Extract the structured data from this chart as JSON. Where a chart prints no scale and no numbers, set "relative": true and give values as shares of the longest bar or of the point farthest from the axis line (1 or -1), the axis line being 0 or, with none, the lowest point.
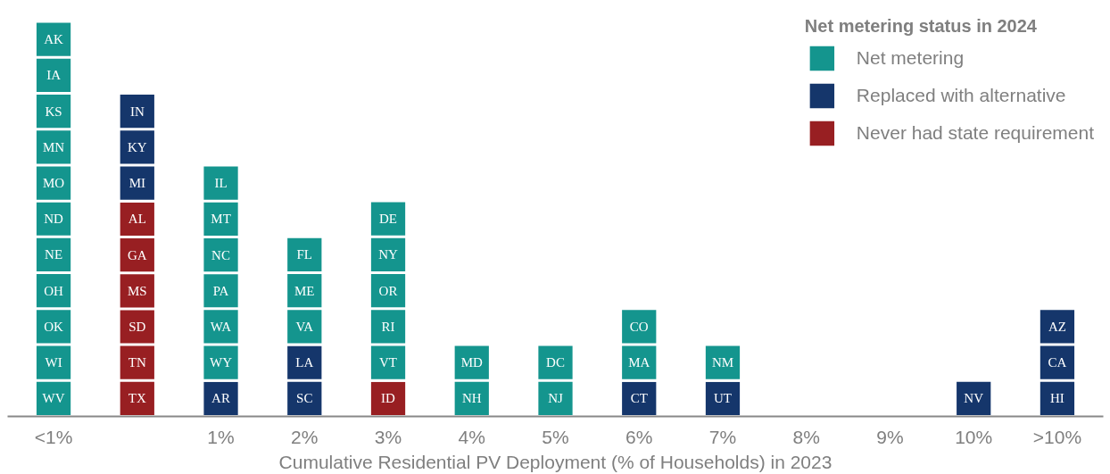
{
  "chart_data": {
    "type": "bar",
    "stacked": true,
    "relative": true,
    "xlabel": "Cumulative Residential PV Deployment (% of Households) in 2023",
    "legend_title": "Net metering status in 2024",
    "legend": "top right",
    "categories": [
      "<1%",
      null,
      "1%",
      "2%",
      "3%",
      "4%",
      "5%",
      "6%",
      "7%",
      "8%",
      "9%",
      "10%",
      ">10%"
    ],
    "series": [
      {
        "name": "Never had state requirement",
        "color": "#981f22",
        "values": [
          0,
          0.545,
          0,
          0,
          0.091,
          0,
          0,
          0,
          0,
          0,
          0,
          0,
          0
        ]
      },
      {
        "name": "Replaced with alternative",
        "color": "#15366b",
        "values": [
          0,
          0.273,
          0.091,
          0.182,
          0,
          0,
          0,
          0.091,
          0.091,
          0,
          0,
          0.091,
          0.273
        ]
      },
      {
        "name": "Net metering",
        "color": "#14958e",
        "values": [
          1,
          0,
          0.545,
          0.273,
          0.455,
          0.182,
          0.182,
          0.182,
          0.091,
          0,
          0,
          0,
          0
        ]
      }
    ],
    "annotations": [
      "WV",
      "WI",
      "OK",
      "OH",
      "NE",
      "ND",
      "MO",
      "MN",
      "KS",
      "IA",
      "AK",
      "TX",
      "TN",
      "SD",
      "MS",
      "GA",
      "AL",
      "MI",
      "KY",
      "IN",
      "AR",
      "WY",
      "WA",
      "PA",
      "NC",
      "MT",
      "IL",
      "SC",
      "LA",
      "VA",
      "ME",
      "FL",
      "ID",
      "VT",
      "RI",
      "OR",
      "NY",
      "DE",
      "NH",
      "MD",
      "NJ",
      "DC",
      "CT",
      "MA",
      "CO",
      "UT",
      "NM",
      "NV",
      "HI",
      "CA",
      "AZ"
    ]
  }
}
